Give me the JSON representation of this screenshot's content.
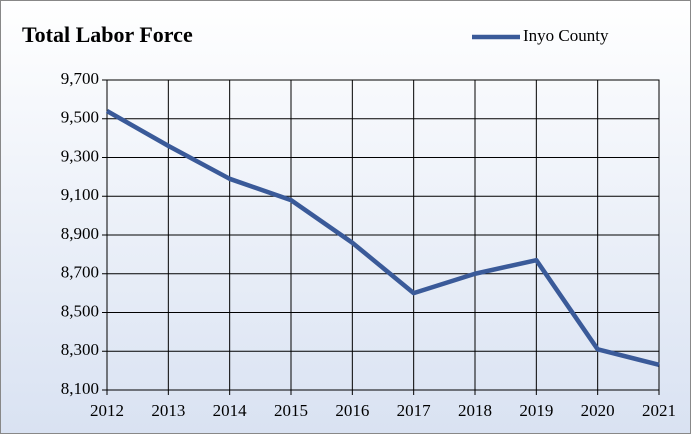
{
  "chart_data": {
    "type": "line",
    "title": "Total Labor Force",
    "x": [
      2012,
      2013,
      2014,
      2015,
      2016,
      2017,
      2018,
      2019,
      2020,
      2021
    ],
    "series": [
      {
        "name": "Inyo County",
        "color": "#3a5a99",
        "values": [
          9540,
          9360,
          9190,
          9080,
          8860,
          8600,
          8700,
          8770,
          8310,
          8230
        ]
      }
    ],
    "xlim": [
      2012,
      2021
    ],
    "xticks": [
      2012,
      2013,
      2014,
      2015,
      2016,
      2017,
      2018,
      2019,
      2020,
      2021
    ],
    "ylim": [
      8100,
      9700
    ],
    "yticks": [
      {
        "value": 8100,
        "label": "8,100"
      },
      {
        "value": 8300,
        "label": "8,300"
      },
      {
        "value": 8500,
        "label": "8,500"
      },
      {
        "value": 8700,
        "label": "8,700"
      },
      {
        "value": 8900,
        "label": "8,900"
      },
      {
        "value": 9100,
        "label": "9,100"
      },
      {
        "value": 9300,
        "label": "9,300"
      },
      {
        "value": 9500,
        "label": "9,500"
      },
      {
        "value": 9700,
        "label": "9,700"
      }
    ],
    "grid": true,
    "legend": "top-right"
  }
}
